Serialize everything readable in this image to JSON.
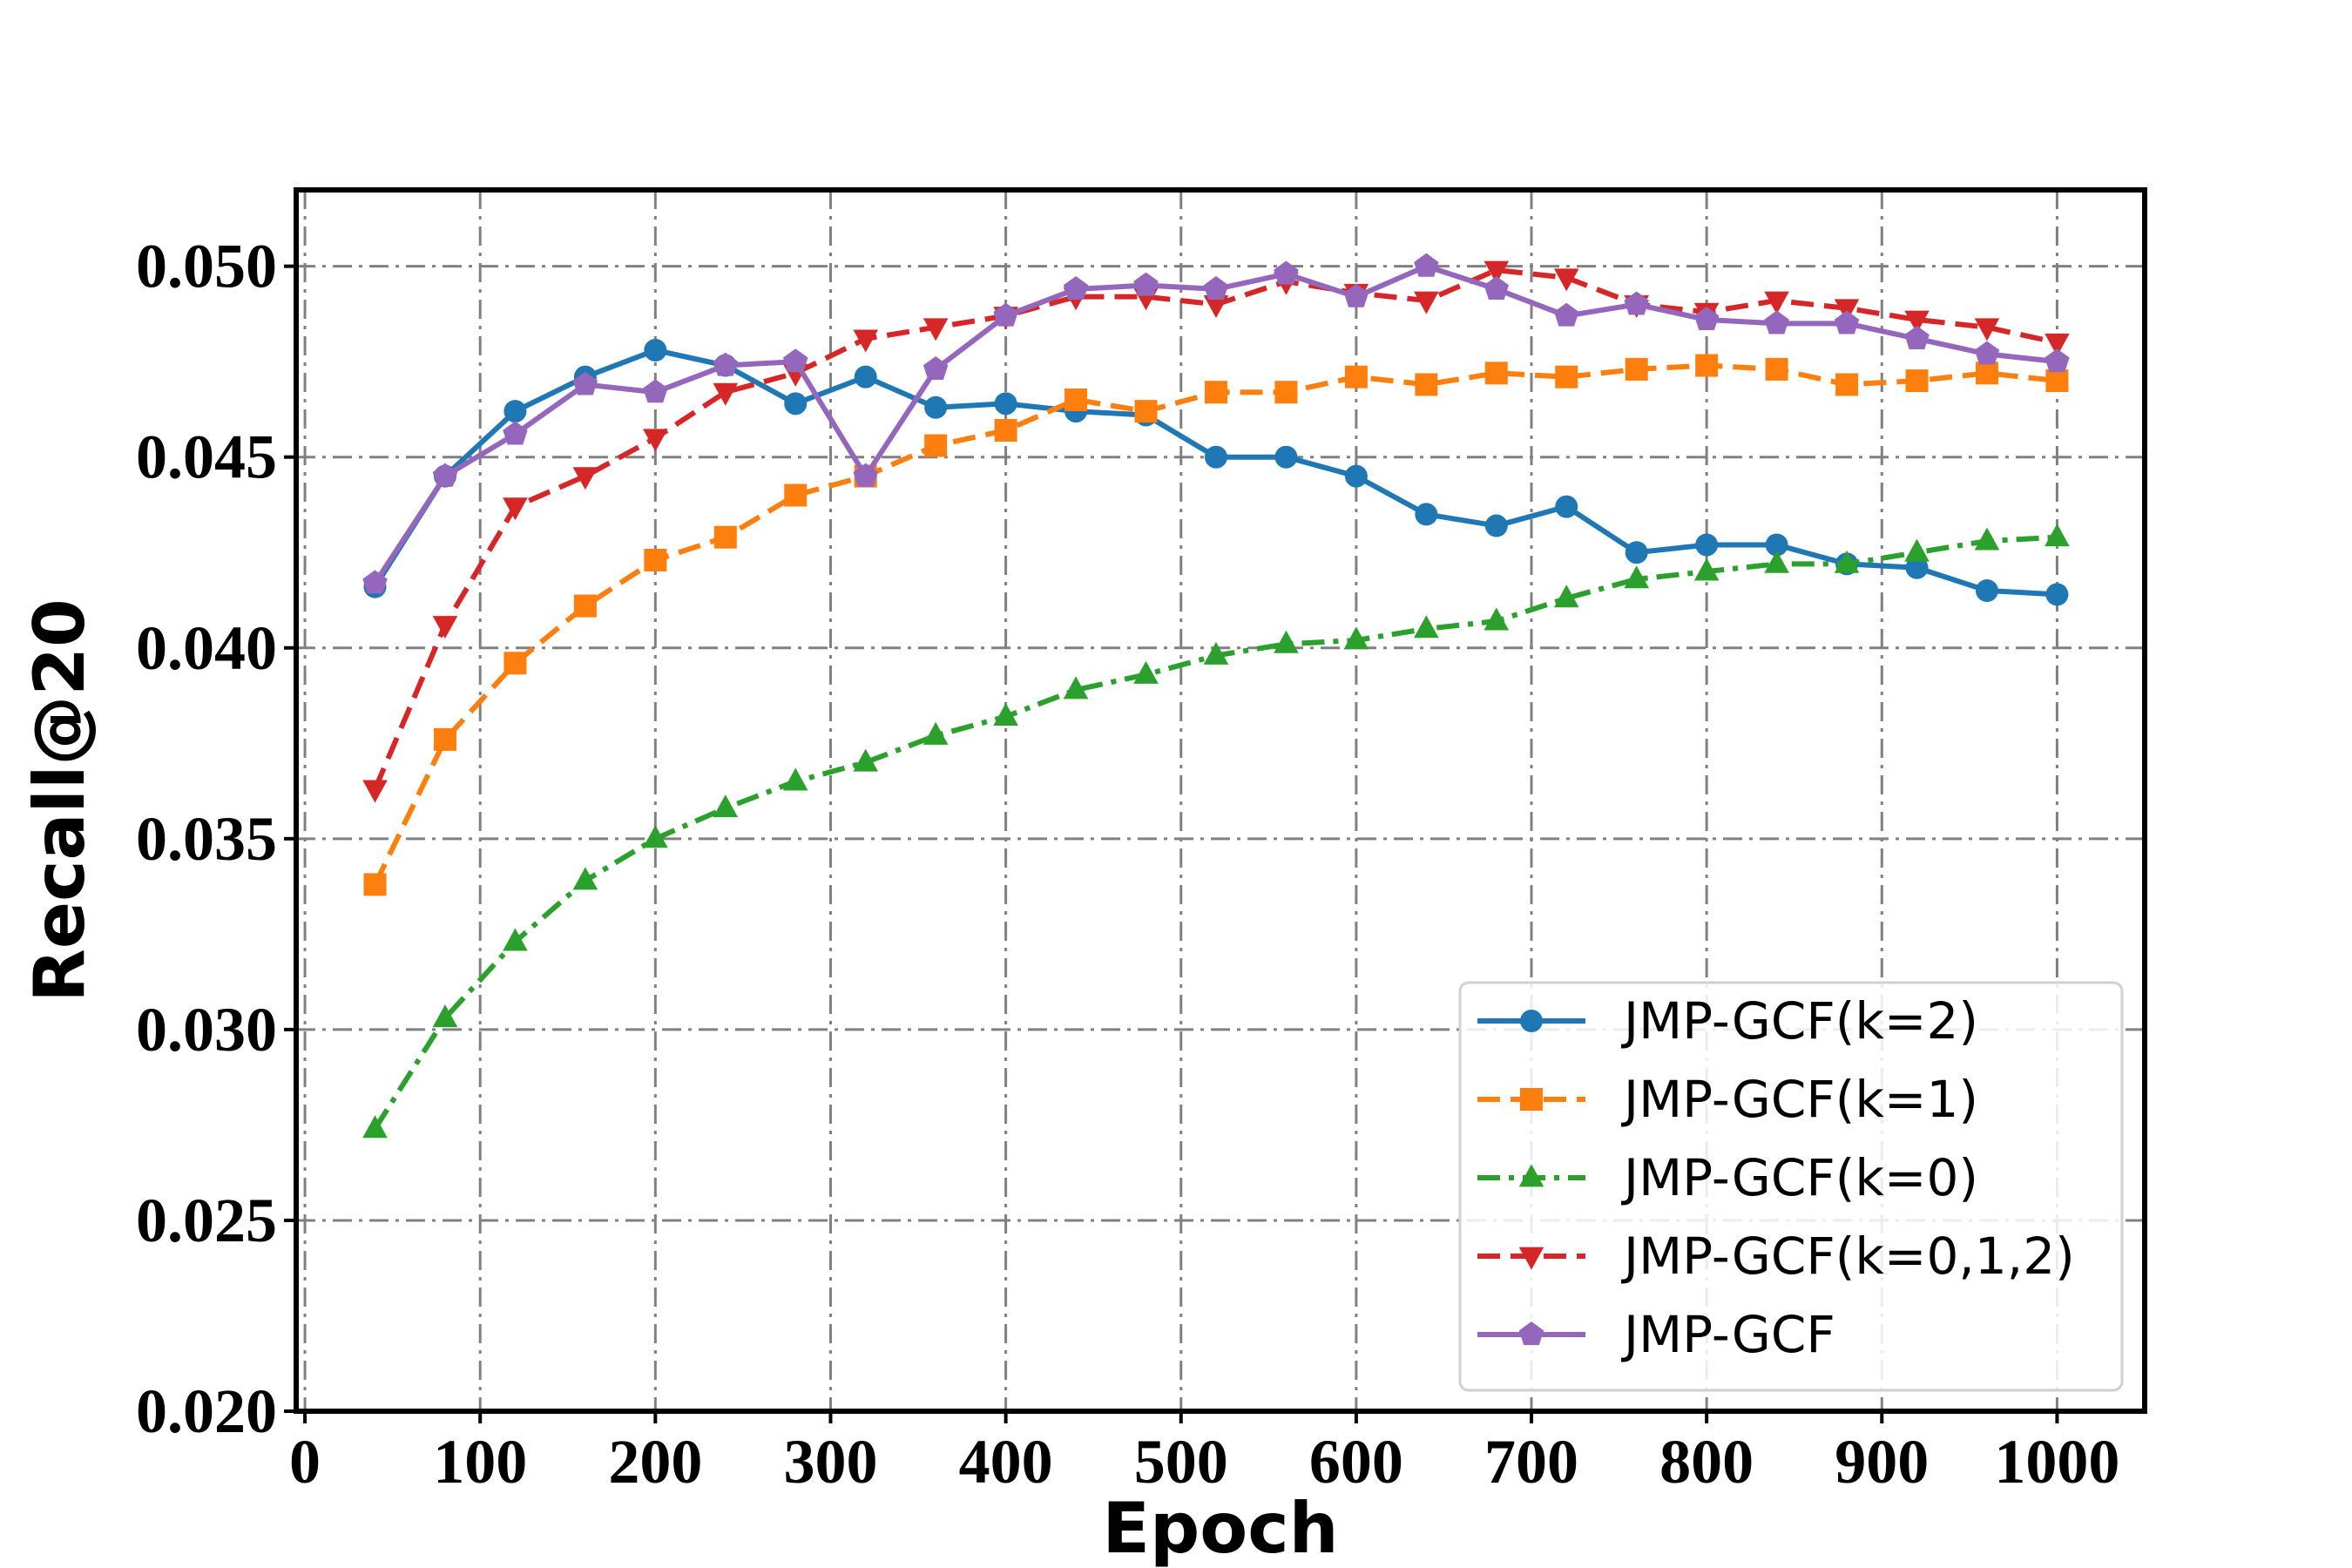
{
  "chart_data": {
    "type": "line",
    "title": "",
    "xlabel": "Epoch",
    "ylabel": "Recall@20",
    "xlim": [
      -5,
      1050
    ],
    "ylim": [
      0.02,
      0.052
    ],
    "xticks": [
      0,
      100,
      200,
      300,
      400,
      500,
      600,
      700,
      800,
      900,
      1000
    ],
    "xtick_labels": [
      "0",
      "100",
      "200",
      "300",
      "400",
      "500",
      "600",
      "700",
      "800",
      "900",
      "1000"
    ],
    "yticks": [
      0.02,
      0.025,
      0.03,
      0.035,
      0.04,
      0.045,
      0.05
    ],
    "ytick_labels": [
      "0.020",
      "0.025",
      "0.030",
      "0.035",
      "0.040",
      "0.045",
      "0.050"
    ],
    "grid": true,
    "legend_position": "bottom-right",
    "x": [
      40,
      80,
      120,
      160,
      200,
      240,
      280,
      320,
      360,
      400,
      440,
      480,
      520,
      560,
      600,
      640,
      680,
      720,
      760,
      800,
      840,
      880,
      920,
      960,
      1000
    ],
    "series": [
      {
        "name": "JMP-GCF(k=2)",
        "color": "#1f77b4",
        "marker": "circle",
        "line": "solid",
        "values": [
          0.0416,
          0.0445,
          0.0462,
          0.0471,
          0.0478,
          0.0474,
          0.0464,
          0.0471,
          0.0463,
          0.0464,
          0.0462,
          0.0461,
          0.045,
          0.045,
          0.0445,
          0.0435,
          0.0432,
          0.0437,
          0.0425,
          0.0427,
          0.0427,
          0.0422,
          0.0421,
          0.0415,
          0.0414
        ]
      },
      {
        "name": "JMP-GCF(k=1)",
        "color": "#ff7f0e",
        "marker": "square",
        "line": "dashed",
        "values": [
          0.0338,
          0.0376,
          0.0396,
          0.0411,
          0.0423,
          0.0429,
          0.044,
          0.0445,
          0.0453,
          0.0457,
          0.0465,
          0.0462,
          0.0467,
          0.0467,
          0.0471,
          0.0469,
          0.0472,
          0.0471,
          0.0473,
          0.0474,
          0.0473,
          0.0469,
          0.047,
          0.0472,
          0.047
        ]
      },
      {
        "name": "JMP-GCF(k=0)",
        "color": "#2ca02c",
        "marker": "triangle-up",
        "line": "dashdot",
        "values": [
          0.0274,
          0.0303,
          0.0323,
          0.0339,
          0.035,
          0.0358,
          0.0365,
          0.037,
          0.0377,
          0.0382,
          0.0389,
          0.0393,
          0.0398,
          0.0401,
          0.0402,
          0.0405,
          0.0407,
          0.0413,
          0.0418,
          0.042,
          0.0422,
          0.0422,
          0.0425,
          0.0428,
          0.0429
        ]
      },
      {
        "name": "JMP-GCF(k=0,1,2)",
        "color": "#d62728",
        "marker": "triangle-down",
        "line": "dashed",
        "values": [
          0.0363,
          0.0406,
          0.0437,
          0.0445,
          0.0455,
          0.0467,
          0.0472,
          0.0481,
          0.0484,
          0.0487,
          0.0492,
          0.0492,
          0.049,
          0.0496,
          0.0493,
          0.0491,
          0.0499,
          0.0497,
          0.049,
          0.0488,
          0.0491,
          0.0489,
          0.0486,
          0.0484,
          0.048
        ]
      },
      {
        "name": "JMP-GCF",
        "color": "#9467bd",
        "marker": "pentagon",
        "line": "solid",
        "values": [
          0.0417,
          0.0445,
          0.0456,
          0.0469,
          0.0467,
          0.0474,
          0.0475,
          0.0445,
          0.0473,
          0.0487,
          0.0494,
          0.0495,
          0.0494,
          0.0498,
          0.0492,
          0.05,
          0.0494,
          0.0487,
          0.049,
          0.0486,
          0.0485,
          0.0485,
          0.0481,
          0.0477,
          0.0475
        ]
      }
    ]
  }
}
